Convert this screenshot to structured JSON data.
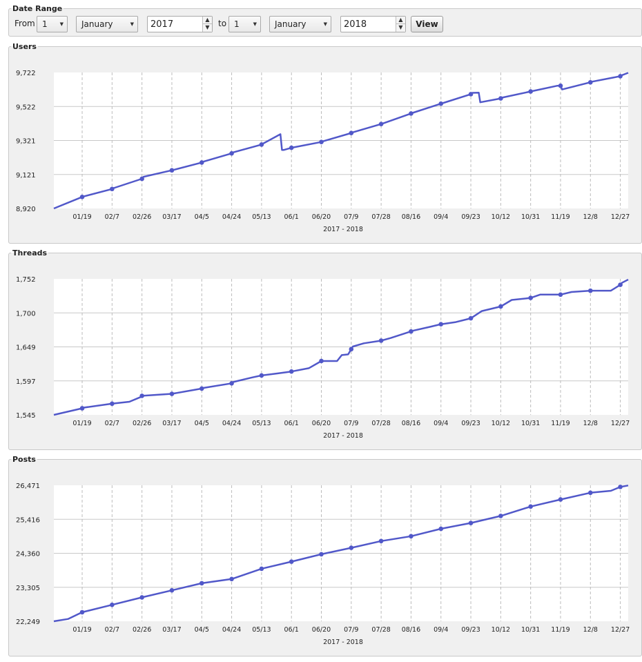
{
  "date_range": {
    "legend": "Date Range",
    "from_label": "From",
    "from_day": "1",
    "from_month": "January",
    "from_year": "2017",
    "to_label": "to",
    "to_day": "1",
    "to_month": "January",
    "to_year": "2018",
    "view_button": "View"
  },
  "colors": {
    "line": "#5158c9",
    "panel_bg": "#f0f0f0",
    "grid": "#c8c8c8"
  },
  "chart_data": [
    {
      "type": "line",
      "title": "Users",
      "xlabel": "2017 - 2018",
      "ylabel": "",
      "x_tick_labels": [
        "01/19",
        "02/7",
        "02/26",
        "03/17",
        "04/5",
        "04/24",
        "05/13",
        "06/1",
        "06/20",
        "07/9",
        "07/28",
        "08/16",
        "09/4",
        "09/23",
        "10/12",
        "10/31",
        "11/19",
        "12/8",
        "12/27"
      ],
      "y_tick_labels": [
        "8,920",
        "9,121",
        "9,321",
        "9,522",
        "9,722"
      ],
      "ylim": [
        8920,
        9722
      ],
      "series": [
        {
          "values": [
            [
              0,
              8920
            ],
            [
              18,
              8988
            ],
            [
              19,
              8991
            ],
            [
              37,
              9035
            ],
            [
              38,
              9040
            ],
            [
              56,
              9095
            ],
            [
              57,
              9107
            ],
            [
              75,
              9145
            ],
            [
              76,
              9147
            ],
            [
              94,
              9191
            ],
            [
              95,
              9196
            ],
            [
              113,
              9245
            ],
            [
              114,
              9251
            ],
            [
              132,
              9297
            ],
            [
              133,
              9303
            ],
            [
              144,
              9358
            ],
            [
              145,
              9265
            ],
            [
              146,
              9265
            ],
            [
              151,
              9278
            ],
            [
              152,
              9280
            ],
            [
              170,
              9312
            ],
            [
              171,
              9316
            ],
            [
              189,
              9365
            ],
            [
              190,
              9369
            ],
            [
              208,
              9418
            ],
            [
              209,
              9421
            ],
            [
              227,
              9480
            ],
            [
              228,
              9484
            ],
            [
              246,
              9538
            ],
            [
              247,
              9541
            ],
            [
              265,
              9594
            ],
            [
              266,
              9602
            ],
            [
              270,
              9603
            ],
            [
              271,
              9546
            ],
            [
              284,
              9569
            ],
            [
              285,
              9574
            ],
            [
              303,
              9610
            ],
            [
              304,
              9612
            ],
            [
              320,
              9644
            ],
            [
              322,
              9644
            ],
            [
              323,
              9622
            ],
            [
              341,
              9664
            ],
            [
              342,
              9668
            ],
            [
              360,
              9700
            ],
            [
              361,
              9706
            ],
            [
              365,
              9720
            ]
          ]
        }
      ],
      "markers_at_x": [
        18,
        37,
        56,
        75,
        94,
        113,
        132,
        151,
        170,
        189,
        208,
        227,
        246,
        265,
        284,
        303,
        322,
        341,
        360
      ]
    },
    {
      "type": "line",
      "title": "Threads",
      "xlabel": "2017 - 2018",
      "ylabel": "",
      "x_tick_labels": [
        "01/19",
        "02/7",
        "02/26",
        "03/17",
        "04/5",
        "04/24",
        "05/13",
        "06/1",
        "06/20",
        "07/9",
        "07/28",
        "08/16",
        "09/4",
        "09/23",
        "10/12",
        "10/31",
        "11/19",
        "12/8",
        "12/27"
      ],
      "y_tick_labels": [
        "1,545",
        "1,597",
        "1,649",
        "1,700",
        "1,752"
      ],
      "ylim": [
        1545,
        1752
      ],
      "series": [
        {
          "values": [
            [
              0,
              1545
            ],
            [
              18,
              1555
            ],
            [
              19,
              1556
            ],
            [
              37,
              1562
            ],
            [
              48,
              1565
            ],
            [
              55,
              1572
            ],
            [
              56,
              1574
            ],
            [
              75,
              1577
            ],
            [
              94,
              1585
            ],
            [
              95,
              1586
            ],
            [
              113,
              1593
            ],
            [
              114,
              1595
            ],
            [
              126,
              1602
            ],
            [
              132,
              1605
            ],
            [
              142,
              1608
            ],
            [
              151,
              1611
            ],
            [
              162,
              1616
            ],
            [
              170,
              1627
            ],
            [
              180,
              1627
            ],
            [
              183,
              1636
            ],
            [
              187,
              1637
            ],
            [
              190,
              1649
            ],
            [
              197,
              1654
            ],
            [
              208,
              1658
            ],
            [
              214,
              1662
            ],
            [
              227,
              1672
            ],
            [
              228,
              1673
            ],
            [
              239,
              1679
            ],
            [
              246,
              1683
            ],
            [
              255,
              1686
            ],
            [
              265,
              1692
            ],
            [
              272,
              1703
            ],
            [
              284,
              1710
            ],
            [
              291,
              1720
            ],
            [
              303,
              1723
            ],
            [
              309,
              1728
            ],
            [
              322,
              1728
            ],
            [
              329,
              1732
            ],
            [
              341,
              1734
            ],
            [
              354,
              1734
            ],
            [
              360,
              1743
            ],
            [
              361,
              1746
            ],
            [
              365,
              1751
            ]
          ]
        }
      ],
      "markers_at_x": [
        18,
        37,
        56,
        75,
        94,
        113,
        132,
        151,
        170,
        189,
        208,
        227,
        246,
        265,
        284,
        303,
        322,
        341,
        360
      ]
    },
    {
      "type": "line",
      "title": "Posts",
      "xlabel": "2017 - 2018",
      "ylabel": "",
      "x_tick_labels": [
        "01/19",
        "02/7",
        "02/26",
        "03/17",
        "04/5",
        "04/24",
        "05/13",
        "06/1",
        "06/20",
        "07/9",
        "07/28",
        "08/16",
        "09/4",
        "09/23",
        "10/12",
        "10/31",
        "11/19",
        "12/8",
        "12/27"
      ],
      "y_tick_labels": [
        "22,249",
        "23,305",
        "24,360",
        "25,416",
        "26,471"
      ],
      "ylim": [
        22249,
        26471
      ],
      "series": [
        {
          "values": [
            [
              0,
              22249
            ],
            [
              9,
              22320
            ],
            [
              18,
              22530
            ],
            [
              37,
              22760
            ],
            [
              56,
              22990
            ],
            [
              75,
              23210
            ],
            [
              94,
              23430
            ],
            [
              113,
              23560
            ],
            [
              132,
              23880
            ],
            [
              151,
              24100
            ],
            [
              170,
              24330
            ],
            [
              189,
              24530
            ],
            [
              208,
              24740
            ],
            [
              227,
              24890
            ],
            [
              246,
              25120
            ],
            [
              265,
              25300
            ],
            [
              284,
              25520
            ],
            [
              303,
              25810
            ],
            [
              322,
              26030
            ],
            [
              341,
              26240
            ],
            [
              354,
              26300
            ],
            [
              360,
              26420
            ],
            [
              365,
              26465
            ]
          ]
        }
      ],
      "markers_at_x": [
        18,
        37,
        56,
        75,
        94,
        113,
        132,
        151,
        170,
        189,
        208,
        227,
        246,
        265,
        284,
        303,
        322,
        341,
        360
      ]
    }
  ]
}
